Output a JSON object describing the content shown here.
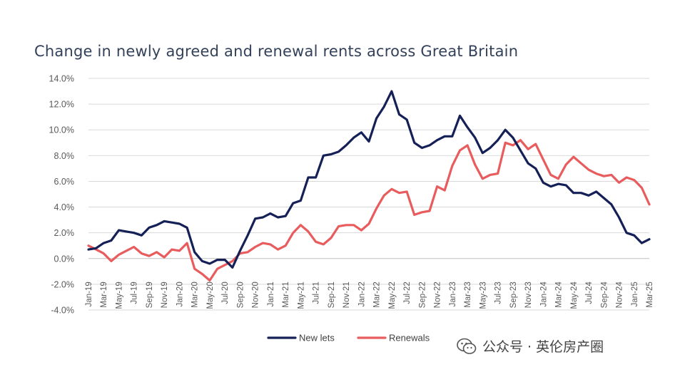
{
  "chart_data": {
    "type": "line",
    "title": "Change in newly agreed and renewal rents across Great Britain",
    "xlabel": "",
    "ylabel": "",
    "ylim": [
      -4.0,
      14.0
    ],
    "yticks": [
      "-4.0%",
      "-2.0%",
      "0.0%",
      "2.0%",
      "4.0%",
      "6.0%",
      "8.0%",
      "10.0%",
      "12.0%",
      "14.0%"
    ],
    "x_tick_labels": [
      "Jan-19",
      "Mar-19",
      "May-19",
      "Jul-19",
      "Sep-19",
      "Nov-19",
      "Jan-20",
      "Mar-20",
      "May-20",
      "Jul-20",
      "Sep-20",
      "Nov-20",
      "Jan-21",
      "Mar-21",
      "May-21",
      "Jul-21",
      "Sep-21",
      "Nov-21",
      "Jan-22",
      "Mar-22",
      "May-22",
      "Jul-22",
      "Sep-22",
      "Nov-22",
      "Jan-23",
      "Mar-23",
      "May-23",
      "Jul-23",
      "Sep-23",
      "Nov-23",
      "Jan-24",
      "Mar-24",
      "May-24",
      "Jul-24",
      "Sep-24",
      "Nov-24",
      "Jan-25",
      "Mar-25"
    ],
    "x": [
      "Jan-19",
      "Feb-19",
      "Mar-19",
      "Apr-19",
      "May-19",
      "Jun-19",
      "Jul-19",
      "Aug-19",
      "Sep-19",
      "Oct-19",
      "Nov-19",
      "Dec-19",
      "Jan-20",
      "Feb-20",
      "Mar-20",
      "Apr-20",
      "May-20",
      "Jun-20",
      "Jul-20",
      "Aug-20",
      "Sep-20",
      "Oct-20",
      "Nov-20",
      "Dec-20",
      "Jan-21",
      "Feb-21",
      "Mar-21",
      "Apr-21",
      "May-21",
      "Jun-21",
      "Jul-21",
      "Aug-21",
      "Sep-21",
      "Oct-21",
      "Nov-21",
      "Dec-21",
      "Jan-22",
      "Feb-22",
      "Mar-22",
      "Apr-22",
      "May-22",
      "Jun-22",
      "Jul-22",
      "Aug-22",
      "Sep-22",
      "Oct-22",
      "Nov-22",
      "Dec-22",
      "Jan-23",
      "Feb-23",
      "Mar-23",
      "Apr-23",
      "May-23",
      "Jun-23",
      "Jul-23",
      "Aug-23",
      "Sep-23",
      "Oct-23",
      "Nov-23",
      "Dec-23",
      "Jan-24",
      "Feb-24",
      "Mar-24",
      "Apr-24",
      "May-24",
      "Jun-24",
      "Jul-24",
      "Aug-24",
      "Sep-24",
      "Oct-24",
      "Nov-24",
      "Dec-24",
      "Jan-25",
      "Feb-25",
      "Mar-25"
    ],
    "series": [
      {
        "name": "New lets",
        "color": "#152057",
        "values": [
          0.7,
          0.8,
          1.2,
          1.4,
          2.2,
          2.1,
          2.0,
          1.8,
          2.4,
          2.6,
          2.9,
          2.8,
          2.7,
          2.4,
          0.5,
          -0.2,
          -0.4,
          -0.1,
          -0.1,
          -0.7,
          0.6,
          1.8,
          3.1,
          3.2,
          3.5,
          3.2,
          3.3,
          4.3,
          4.5,
          6.3,
          6.3,
          8.0,
          8.1,
          8.3,
          8.8,
          9.4,
          9.8,
          9.1,
          10.9,
          11.8,
          13.0,
          11.2,
          10.8,
          9.0,
          8.6,
          8.8,
          9.2,
          9.5,
          9.5,
          11.1,
          10.2,
          9.4,
          8.2,
          8.6,
          9.2,
          10.0,
          9.4,
          8.4,
          7.4,
          7.0,
          5.9,
          5.6,
          5.8,
          5.7,
          5.1,
          5.1,
          4.9,
          5.2,
          4.7,
          4.2,
          3.2,
          2.0,
          1.8,
          1.2,
          1.5
        ]
      },
      {
        "name": "Renewals",
        "color": "#e85c5e",
        "values": [
          1.0,
          0.7,
          0.4,
          -0.2,
          0.3,
          0.6,
          0.9,
          0.4,
          0.2,
          0.5,
          0.1,
          0.7,
          0.6,
          1.2,
          -0.8,
          -1.2,
          -1.7,
          -0.8,
          -0.5,
          -0.2,
          0.4,
          0.5,
          0.9,
          1.2,
          1.1,
          0.7,
          1.0,
          2.0,
          2.6,
          2.1,
          1.3,
          1.1,
          1.6,
          2.5,
          2.6,
          2.6,
          2.2,
          2.7,
          3.9,
          4.9,
          5.4,
          5.1,
          5.2,
          3.4,
          3.6,
          3.7,
          5.6,
          5.3,
          7.2,
          8.4,
          8.8,
          7.3,
          6.2,
          6.5,
          6.6,
          9.0,
          8.8,
          9.2,
          8.5,
          8.9,
          7.7,
          6.5,
          6.2,
          7.3,
          7.9,
          7.4,
          6.9,
          6.6,
          6.4,
          6.5,
          5.9,
          6.3,
          6.1,
          5.5,
          4.2
        ]
      }
    ],
    "grid": true,
    "legend_position": "bottom-center"
  },
  "watermark": {
    "icon": "wechat-icon",
    "text": "公众号 · 英伦房产圈"
  }
}
